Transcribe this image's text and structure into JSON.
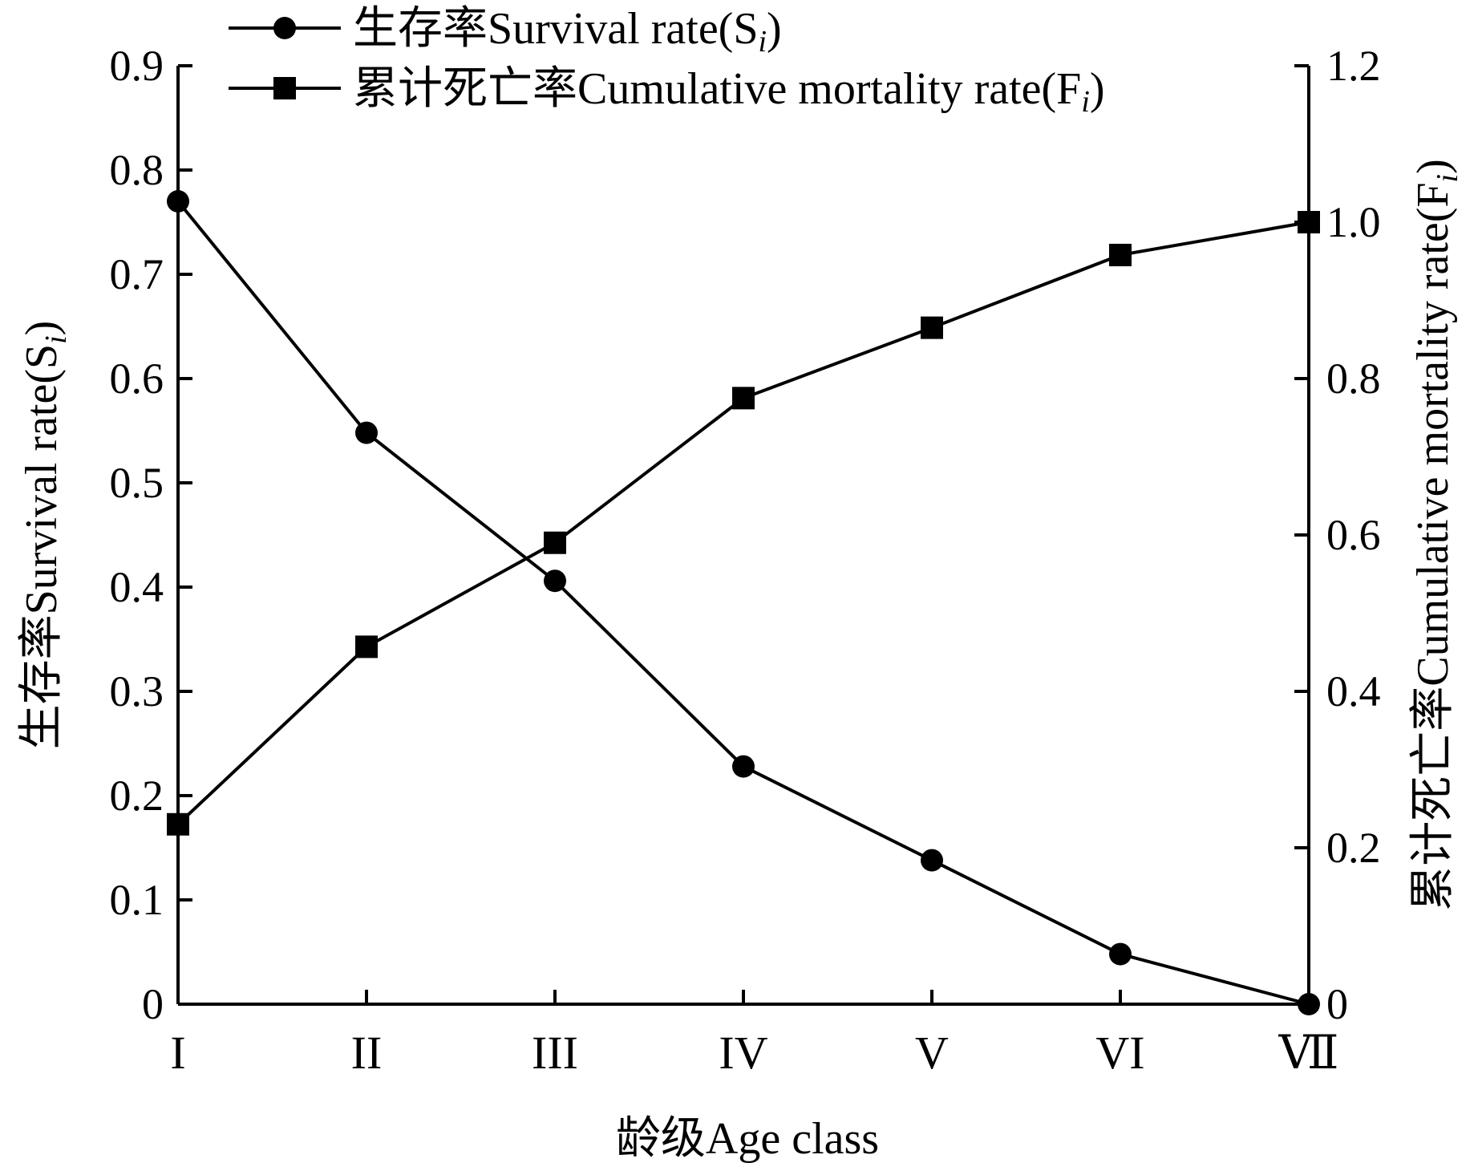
{
  "chart_data": {
    "type": "line",
    "categories": [
      "I",
      "II",
      "III",
      "IV",
      "V",
      "VI",
      "Ⅶ"
    ],
    "xlabel": "龄级Age class",
    "ylabel_left": "生存率Survival rate(S",
    "ylabel_left_subscript": "i",
    "ylabel_left_close": ")",
    "ylabel_right": "累计死亡率Cumulative mortality rate(F",
    "ylabel_right_subscript": "i",
    "ylabel_right_close": ")",
    "ylim_left": [
      0,
      0.9
    ],
    "ylim_right": [
      0,
      1.2
    ],
    "yticks_left": [
      "0",
      "0.1",
      "0.2",
      "0.3",
      "0.4",
      "0.5",
      "0.6",
      "0.7",
      "0.8",
      "0.9"
    ],
    "yticks_right": [
      "0",
      "0.2",
      "0.4",
      "0.6",
      "0.8",
      "1.0",
      "1.2"
    ],
    "series": [
      {
        "name": "生存率Survival rate(S",
        "name_subscript": "i",
        "name_close": ")",
        "axis": "left",
        "marker": "circle",
        "values": [
          0.77,
          0.548,
          0.406,
          0.228,
          0.138,
          0.048,
          0.0
        ]
      },
      {
        "name": "累计死亡率Cumulative mortality rate(F",
        "name_subscript": "i",
        "name_close": ")",
        "axis": "right",
        "marker": "square",
        "values": [
          0.23,
          0.457,
          0.59,
          0.775,
          0.865,
          0.958,
          1.0
        ]
      }
    ],
    "grid": false,
    "legend_position": "top-left"
  }
}
